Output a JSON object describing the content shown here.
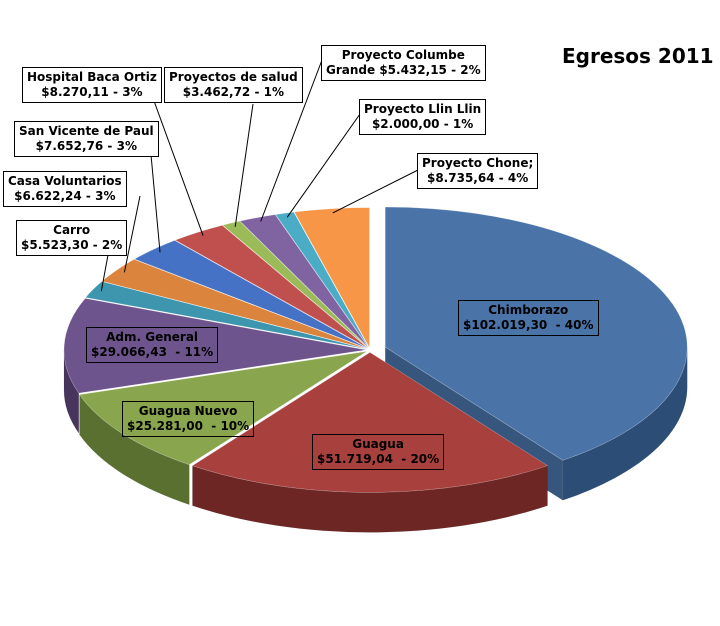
{
  "chart_data": {
    "type": "pie",
    "title": "Egresos 2011",
    "slices": [
      {
        "name": "Chimborazo",
        "value_text": "$102.019,30",
        "pct_text": "40%",
        "pct": 40,
        "color": "#4A73A8",
        "side": "#2C4D76"
      },
      {
        "name": "Guagua",
        "value_text": "$51.719,04",
        "pct_text": "20%",
        "pct": 20,
        "color": "#A8403D",
        "side": "#6E2624"
      },
      {
        "name": "Guagua Nuevo",
        "value_text": "$25.281,00",
        "pct_text": "10%",
        "pct": 10,
        "color": "#89A54E",
        "side": "#5A7031"
      },
      {
        "name": "Adm. General",
        "value_text": "$29.066,43",
        "pct_text": "11%",
        "pct": 11,
        "color": "#6E548D",
        "side": "#47355E"
      },
      {
        "name": "Carro",
        "value_text": "$5.523,30",
        "pct_text": "2%",
        "pct": 2,
        "color": "#3D96AE",
        "side": "#256575"
      },
      {
        "name": "Casa Voluntarios",
        "value_text": "$6.622,24",
        "pct_text": "3%",
        "pct": 3,
        "color": "#DB843D",
        "side": "#97561F"
      },
      {
        "name": "San Vicente de Paul",
        "value_text": "$7.652,76",
        "pct_text": "3%",
        "pct": 3,
        "color": "#4572C4",
        "side": "#2A4C8A"
      },
      {
        "name": "Hospital Baca Ortiz",
        "value_text": "$8.270,11",
        "pct_text": "3%",
        "pct": 3,
        "color": "#C0504D",
        "side": "#843532"
      },
      {
        "name": "Proyectos de salud",
        "value_text": "$3.462,72",
        "pct_text": "1%",
        "pct": 1,
        "color": "#9BBB59",
        "side": "#6A8439"
      },
      {
        "name": "Proyecto Columbe Grande",
        "value_text": "$5.432,15",
        "pct_text": "2%",
        "pct": 2,
        "color": "#8064A2",
        "side": "#56426F"
      },
      {
        "name": "Proyecto Llin Llin",
        "value_text": "$2.000,00",
        "pct_text": "1%",
        "pct": 1,
        "color": "#4BACC6",
        "side": "#2F7A8E"
      },
      {
        "name": "Proyecto Chone;",
        "value_text": "$8.735,64",
        "pct_text": "4%",
        "pct": 4,
        "color": "#F79646",
        "side": "#B36520"
      }
    ],
    "exploded": [
      "Chimborazo"
    ],
    "legend": "none",
    "style": "3d-exploded-pie"
  }
}
